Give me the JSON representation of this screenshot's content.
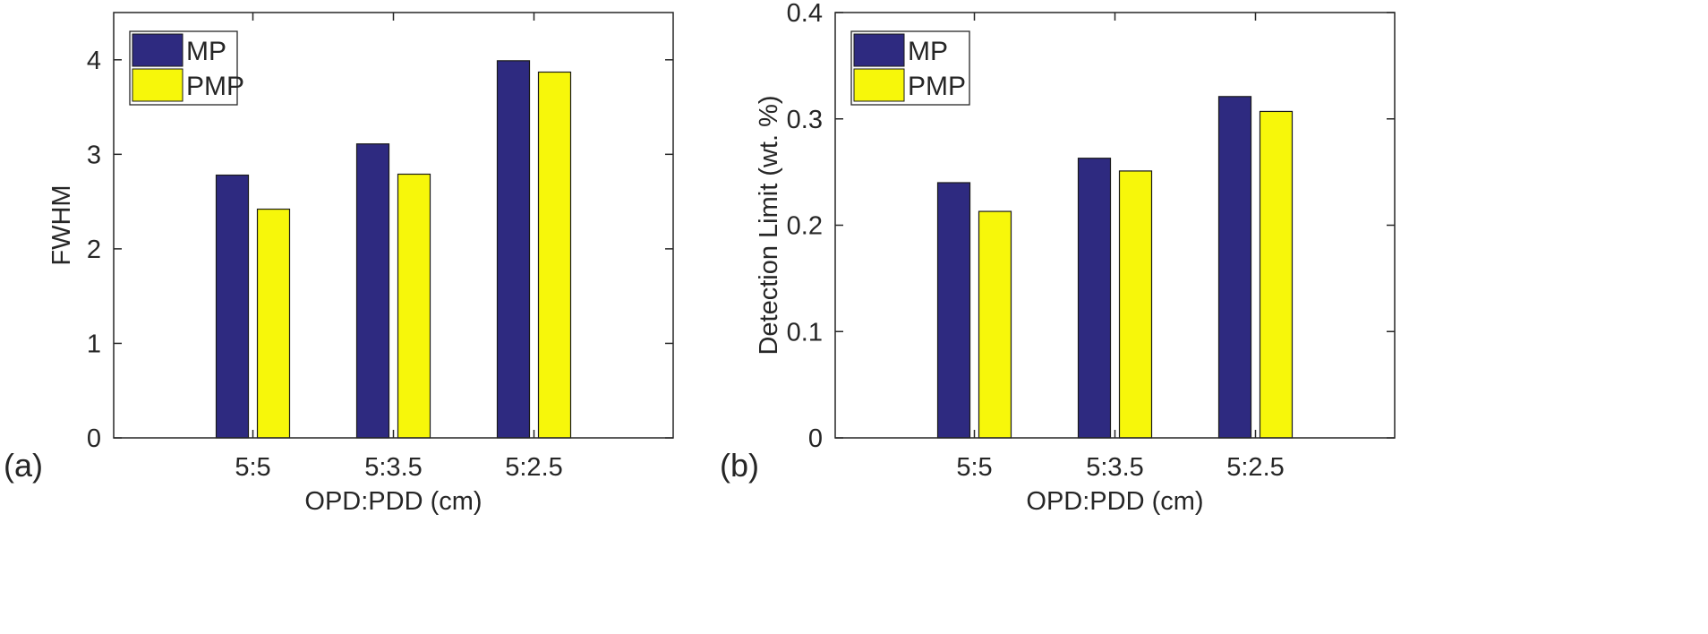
{
  "colors": {
    "mp": "#2e2a80",
    "pmp": "#f7f70a",
    "axis": "#262626",
    "bar_edge": "#1a1a1a"
  },
  "chart_data": [
    {
      "type": "bar",
      "panel_label": "(a)",
      "categories": [
        "5:5",
        "5:3.5",
        "5:2.5"
      ],
      "series": [
        {
          "name": "MP",
          "values": [
            2.78,
            3.11,
            3.99
          ]
        },
        {
          "name": "PMP",
          "values": [
            2.42,
            2.79,
            3.87
          ]
        }
      ],
      "xlabel": "OPD:PDD (cm)",
      "ylabel": "FWHM",
      "ylim": [
        0,
        4.5
      ],
      "yticks": [
        0,
        1,
        2,
        3,
        4
      ],
      "ytick_labels": [
        "0",
        "1",
        "2",
        "3",
        "4"
      ],
      "legend": "top-left",
      "grid": false
    },
    {
      "type": "bar",
      "panel_label": "(b)",
      "categories": [
        "5:5",
        "5:3.5",
        "5:2.5"
      ],
      "series": [
        {
          "name": "MP",
          "values": [
            0.24,
            0.263,
            0.321
          ]
        },
        {
          "name": "PMP",
          "values": [
            0.213,
            0.251,
            0.307
          ]
        }
      ],
      "xlabel": "OPD:PDD (cm)",
      "ylabel": "Detection Limit (wt. %)",
      "ylim": [
        0,
        0.4
      ],
      "yticks": [
        0,
        0.1,
        0.2,
        0.3,
        0.4
      ],
      "ytick_labels": [
        "0",
        "0.1",
        "0.2",
        "0.3",
        "0.4"
      ],
      "legend": "top-left",
      "grid": false
    }
  ]
}
